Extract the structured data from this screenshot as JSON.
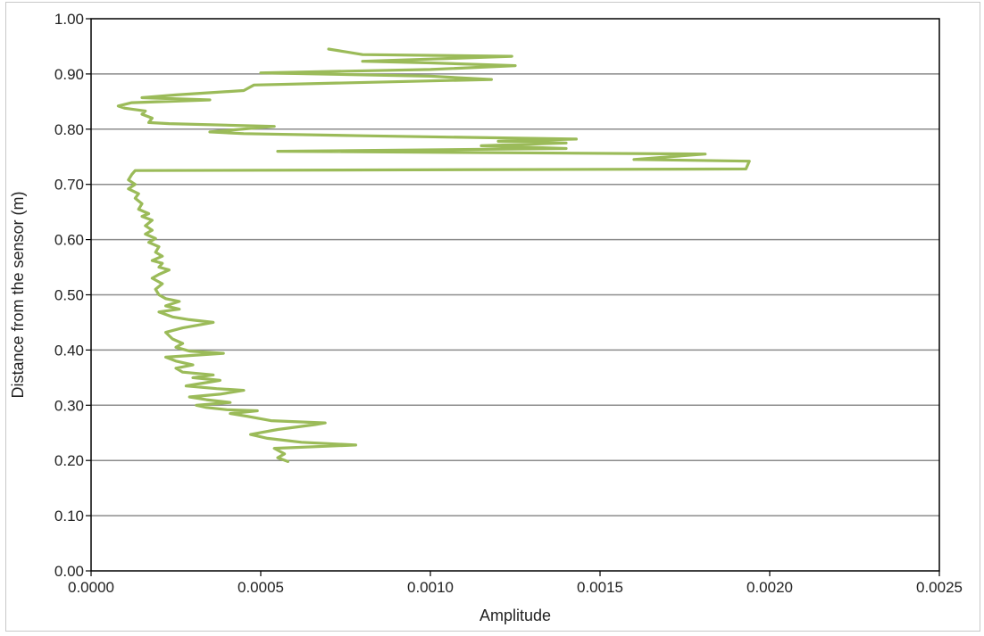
{
  "chart_data": {
    "type": "line",
    "title": "",
    "xlabel": "Amplitude",
    "ylabel": "Distance from the sensor (m)",
    "xlim": [
      0,
      0.0025
    ],
    "ylim": [
      0,
      1.0
    ],
    "x_ticks": [
      "0.0000",
      "0.0005",
      "0.0010",
      "0.0015",
      "0.0020",
      "0.0025"
    ],
    "y_ticks": [
      "0.00",
      "0.10",
      "0.20",
      "0.30",
      "0.40",
      "0.50",
      "0.60",
      "0.70",
      "0.80",
      "0.90",
      "1.00"
    ],
    "grid": {
      "horizontal": true,
      "vertical": false
    },
    "legend": "none",
    "series_color": "#9bbb59",
    "series": [
      {
        "points": [
          [
            0.00058,
            0.198
          ],
          [
            0.00055,
            0.205
          ],
          [
            0.00057,
            0.212
          ],
          [
            0.00054,
            0.222
          ],
          [
            0.00078,
            0.228
          ],
          [
            0.00062,
            0.233
          ],
          [
            0.00052,
            0.24
          ],
          [
            0.00047,
            0.247
          ],
          [
            0.00055,
            0.256
          ],
          [
            0.00066,
            0.265
          ],
          [
            0.00069,
            0.268
          ],
          [
            0.00053,
            0.272
          ],
          [
            0.00046,
            0.28
          ],
          [
            0.00041,
            0.285
          ],
          [
            0.00049,
            0.29
          ],
          [
            0.0004,
            0.292
          ],
          [
            0.00034,
            0.296
          ],
          [
            0.00031,
            0.3
          ],
          [
            0.00041,
            0.305
          ],
          [
            0.00034,
            0.31
          ],
          [
            0.00029,
            0.315
          ],
          [
            0.00038,
            0.32
          ],
          [
            0.00045,
            0.327
          ],
          [
            0.00037,
            0.33
          ],
          [
            0.00028,
            0.335
          ],
          [
            0.00033,
            0.34
          ],
          [
            0.00038,
            0.345
          ],
          [
            0.0003,
            0.35
          ],
          [
            0.00036,
            0.355
          ],
          [
            0.00027,
            0.36
          ],
          [
            0.00025,
            0.367
          ],
          [
            0.0003,
            0.373
          ],
          [
            0.00025,
            0.38
          ],
          [
            0.00022,
            0.387
          ],
          [
            0.00039,
            0.394
          ],
          [
            0.00029,
            0.398
          ],
          [
            0.00025,
            0.405
          ],
          [
            0.00027,
            0.412
          ],
          [
            0.00024,
            0.42
          ],
          [
            0.00022,
            0.432
          ],
          [
            0.00027,
            0.44
          ],
          [
            0.00036,
            0.45
          ],
          [
            0.00029,
            0.455
          ],
          [
            0.00024,
            0.46
          ],
          [
            0.0002,
            0.469
          ],
          [
            0.00026,
            0.474
          ],
          [
            0.00022,
            0.48
          ],
          [
            0.00026,
            0.488
          ],
          [
            0.00022,
            0.493
          ],
          [
            0.0002,
            0.5
          ],
          [
            0.00019,
            0.51
          ],
          [
            0.00021,
            0.52
          ],
          [
            0.00018,
            0.53
          ],
          [
            0.0002,
            0.537
          ],
          [
            0.00023,
            0.545
          ],
          [
            0.0002,
            0.55
          ],
          [
            0.00021,
            0.557
          ],
          [
            0.00018,
            0.562
          ],
          [
            0.00021,
            0.57
          ],
          [
            0.00019,
            0.577
          ],
          [
            0.0002,
            0.587
          ],
          [
            0.00017,
            0.595
          ],
          [
            0.00019,
            0.602
          ],
          [
            0.00016,
            0.61
          ],
          [
            0.00018,
            0.617
          ],
          [
            0.00016,
            0.625
          ],
          [
            0.00018,
            0.635
          ],
          [
            0.00015,
            0.642
          ],
          [
            0.00017,
            0.647
          ],
          [
            0.00014,
            0.655
          ],
          [
            0.00015,
            0.665
          ],
          [
            0.00013,
            0.675
          ],
          [
            0.00014,
            0.683
          ],
          [
            0.00011,
            0.692
          ],
          [
            0.00013,
            0.7
          ],
          [
            0.00011,
            0.708
          ],
          [
            0.00012,
            0.718
          ],
          [
            0.00013,
            0.725
          ],
          [
            0.00193,
            0.728
          ],
          [
            0.00194,
            0.742
          ],
          [
            0.0016,
            0.745
          ],
          [
            0.00181,
            0.755
          ],
          [
            0.00055,
            0.76
          ],
          [
            0.0014,
            0.765
          ],
          [
            0.00115,
            0.77
          ],
          [
            0.0014,
            0.775
          ],
          [
            0.0012,
            0.778
          ],
          [
            0.00143,
            0.782
          ],
          [
            0.0008,
            0.788
          ],
          [
            0.00045,
            0.792
          ],
          [
            0.00035,
            0.795
          ],
          [
            0.00054,
            0.805
          ],
          [
            0.00023,
            0.81
          ],
          [
            0.00017,
            0.812
          ],
          [
            0.00018,
            0.82
          ],
          [
            0.00015,
            0.827
          ],
          [
            0.00016,
            0.833
          ],
          [
            0.0001,
            0.838
          ],
          [
            8e-05,
            0.842
          ],
          [
            0.00012,
            0.848
          ],
          [
            0.00035,
            0.853
          ],
          [
            0.00015,
            0.857
          ],
          [
            0.00025,
            0.862
          ],
          [
            0.00045,
            0.87
          ],
          [
            0.00048,
            0.88
          ],
          [
            0.00118,
            0.89
          ],
          [
            0.001,
            0.896
          ],
          [
            0.0005,
            0.902
          ],
          [
            0.001,
            0.908
          ],
          [
            0.00125,
            0.915
          ],
          [
            0.001,
            0.92
          ],
          [
            0.0008,
            0.923
          ],
          [
            0.00105,
            0.928
          ],
          [
            0.00124,
            0.932
          ],
          [
            0.0008,
            0.935
          ],
          [
            0.00075,
            0.94
          ],
          [
            0.0007,
            0.945
          ]
        ]
      }
    ]
  }
}
